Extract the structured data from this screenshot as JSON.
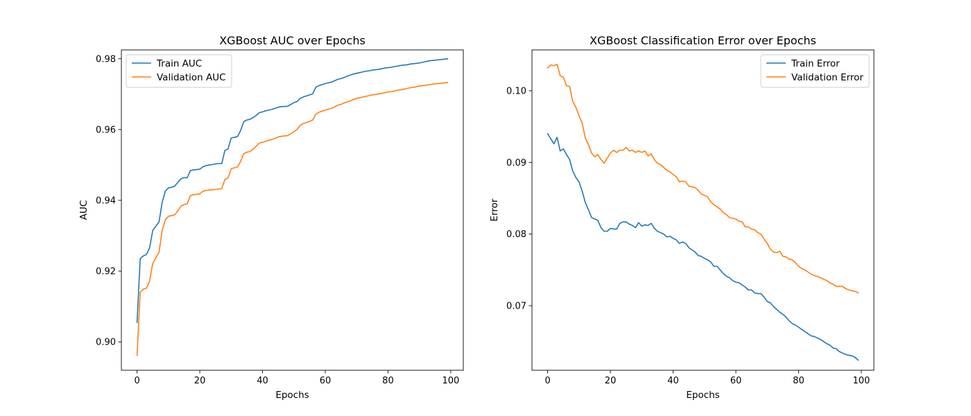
{
  "chart_data": [
    {
      "type": "line",
      "title": "XGBoost AUC over Epochs",
      "xlabel": "Epochs",
      "ylabel": "AUC",
      "xlim": [
        -5,
        104
      ],
      "ylim": [
        0.892,
        0.9825
      ],
      "xticks": [
        0,
        20,
        40,
        60,
        80,
        100
      ],
      "yticks": [
        0.9,
        0.92,
        0.94,
        0.96,
        0.98
      ],
      "ytick_labels": [
        "0.90",
        "0.92",
        "0.94",
        "0.96",
        "0.98"
      ],
      "legend_position": "upper-left",
      "grid": false,
      "series": [
        {
          "name": "Train AUC",
          "color": "#1f77b4",
          "values": [
            0.9055,
            0.9235,
            0.9243,
            0.9247,
            0.9266,
            0.9315,
            0.9327,
            0.9339,
            0.9394,
            0.9426,
            0.9435,
            0.9437,
            0.944,
            0.9451,
            0.9461,
            0.9464,
            0.9464,
            0.9484,
            0.9486,
            0.9487,
            0.9488,
            0.9495,
            0.9498,
            0.95,
            0.9501,
            0.9503,
            0.9504,
            0.9504,
            0.9541,
            0.9545,
            0.9576,
            0.9578,
            0.958,
            0.9597,
            0.9622,
            0.9627,
            0.9629,
            0.9634,
            0.964,
            0.9648,
            0.965,
            0.9653,
            0.9655,
            0.9657,
            0.966,
            0.9663,
            0.9665,
            0.9665,
            0.9666,
            0.9671,
            0.9676,
            0.9679,
            0.9688,
            0.9692,
            0.9695,
            0.9698,
            0.9701,
            0.972,
            0.9724,
            0.9727,
            0.973,
            0.9732,
            0.9734,
            0.9738,
            0.9742,
            0.9744,
            0.9747,
            0.9751,
            0.9754,
            0.9757,
            0.9759,
            0.9761,
            0.9763,
            0.9765,
            0.9766,
            0.9768,
            0.9769,
            0.977,
            0.9772,
            0.9774,
            0.9775,
            0.9776,
            0.9778,
            0.9779,
            0.9781,
            0.9782,
            0.9783,
            0.9785,
            0.9786,
            0.9787,
            0.9788,
            0.979,
            0.9792,
            0.9794,
            0.9795,
            0.9796,
            0.9797,
            0.9798,
            0.9799,
            0.98
          ]
        },
        {
          "name": "Validation AUC",
          "color": "#ff7f0e",
          "values": [
            0.8962,
            0.914,
            0.9149,
            0.9152,
            0.9172,
            0.9222,
            0.9238,
            0.9253,
            0.9315,
            0.9345,
            0.9355,
            0.9357,
            0.9359,
            0.937,
            0.9384,
            0.9388,
            0.939,
            0.9413,
            0.9416,
            0.9417,
            0.9418,
            0.9426,
            0.9428,
            0.9429,
            0.943,
            0.9431,
            0.9432,
            0.9433,
            0.9459,
            0.9463,
            0.9489,
            0.9492,
            0.9494,
            0.951,
            0.9532,
            0.9536,
            0.9538,
            0.9545,
            0.9553,
            0.9562,
            0.9564,
            0.9567,
            0.957,
            0.9572,
            0.9575,
            0.9579,
            0.9581,
            0.9582,
            0.9583,
            0.9588,
            0.9594,
            0.96,
            0.9612,
            0.9617,
            0.962,
            0.9623,
            0.9627,
            0.9644,
            0.9649,
            0.9652,
            0.9655,
            0.9658,
            0.966,
            0.9664,
            0.9669,
            0.9671,
            0.9675,
            0.9678,
            0.9681,
            0.9685,
            0.9688,
            0.969,
            0.9692,
            0.9694,
            0.9696,
            0.9698,
            0.9699,
            0.9701,
            0.9702,
            0.9704,
            0.9706,
            0.9707,
            0.9709,
            0.9711,
            0.9712,
            0.9714,
            0.9716,
            0.9718,
            0.9719,
            0.9721,
            0.9723,
            0.9724,
            0.9725,
            0.9727,
            0.9728,
            0.9729,
            0.973,
            0.9731,
            0.9732,
            0.9733
          ]
        }
      ]
    },
    {
      "type": "line",
      "title": "XGBoost Classification Error over Epochs",
      "xlabel": "Epochs",
      "ylabel": "Error",
      "xlim": [
        -5,
        104
      ],
      "ylim": [
        0.061,
        0.1057
      ],
      "xticks": [
        0,
        20,
        40,
        60,
        80,
        100
      ],
      "yticks": [
        0.07,
        0.08,
        0.09,
        0.1
      ],
      "ytick_labels": [
        "0.07",
        "0.08",
        "0.09",
        "0.10"
      ],
      "legend_position": "upper-right",
      "grid": false,
      "series": [
        {
          "name": "Train Error",
          "color": "#1f77b4",
          "values": [
            0.094,
            0.0933,
            0.0926,
            0.0935,
            0.0916,
            0.0919,
            0.0911,
            0.0904,
            0.0888,
            0.0879,
            0.0873,
            0.086,
            0.0844,
            0.0834,
            0.0823,
            0.0821,
            0.0819,
            0.0809,
            0.0804,
            0.0804,
            0.0808,
            0.0807,
            0.0807,
            0.0815,
            0.0817,
            0.0817,
            0.0814,
            0.0812,
            0.0809,
            0.0816,
            0.0811,
            0.0813,
            0.0812,
            0.0815,
            0.0808,
            0.0804,
            0.0802,
            0.08,
            0.0796,
            0.0797,
            0.0794,
            0.0792,
            0.0787,
            0.0789,
            0.0787,
            0.0781,
            0.0778,
            0.0775,
            0.077,
            0.0769,
            0.0766,
            0.0764,
            0.0761,
            0.0755,
            0.0755,
            0.075,
            0.0745,
            0.0741,
            0.0739,
            0.0735,
            0.0733,
            0.0732,
            0.0729,
            0.0726,
            0.0722,
            0.0722,
            0.0718,
            0.0717,
            0.0717,
            0.0712,
            0.0706,
            0.0704,
            0.0699,
            0.0695,
            0.0691,
            0.0688,
            0.0684,
            0.0679,
            0.0675,
            0.0673,
            0.067,
            0.0667,
            0.0664,
            0.0661,
            0.0658,
            0.0657,
            0.0655,
            0.0653,
            0.065,
            0.0647,
            0.0645,
            0.0641,
            0.064,
            0.0636,
            0.0634,
            0.0632,
            0.0631,
            0.063,
            0.0628,
            0.0624
          ]
        },
        {
          "name": "Validation Error",
          "color": "#ff7f0e",
          "values": [
            0.1032,
            0.1036,
            0.1035,
            0.1037,
            0.1021,
            0.1019,
            0.1007,
            0.1006,
            0.0985,
            0.0977,
            0.0965,
            0.0955,
            0.0934,
            0.0925,
            0.0913,
            0.0908,
            0.0911,
            0.0904,
            0.0899,
            0.0906,
            0.0913,
            0.0917,
            0.0914,
            0.0917,
            0.0917,
            0.0921,
            0.0916,
            0.0917,
            0.0914,
            0.0916,
            0.0914,
            0.0916,
            0.0909,
            0.0912,
            0.0904,
            0.0899,
            0.0897,
            0.0893,
            0.0889,
            0.0887,
            0.0883,
            0.088,
            0.0873,
            0.0874,
            0.0873,
            0.0867,
            0.0866,
            0.0865,
            0.0861,
            0.0856,
            0.0854,
            0.0852,
            0.0845,
            0.0841,
            0.0838,
            0.0835,
            0.083,
            0.0827,
            0.0823,
            0.0822,
            0.0821,
            0.0818,
            0.0817,
            0.081,
            0.081,
            0.0807,
            0.0806,
            0.0802,
            0.08,
            0.0793,
            0.0787,
            0.0779,
            0.0775,
            0.0774,
            0.0776,
            0.0769,
            0.0768,
            0.0765,
            0.0764,
            0.076,
            0.0755,
            0.0752,
            0.075,
            0.0747,
            0.0744,
            0.0742,
            0.0741,
            0.0739,
            0.0737,
            0.0735,
            0.0732,
            0.073,
            0.0727,
            0.0727,
            0.0727,
            0.0724,
            0.0722,
            0.0721,
            0.072,
            0.0718
          ]
        }
      ]
    }
  ]
}
